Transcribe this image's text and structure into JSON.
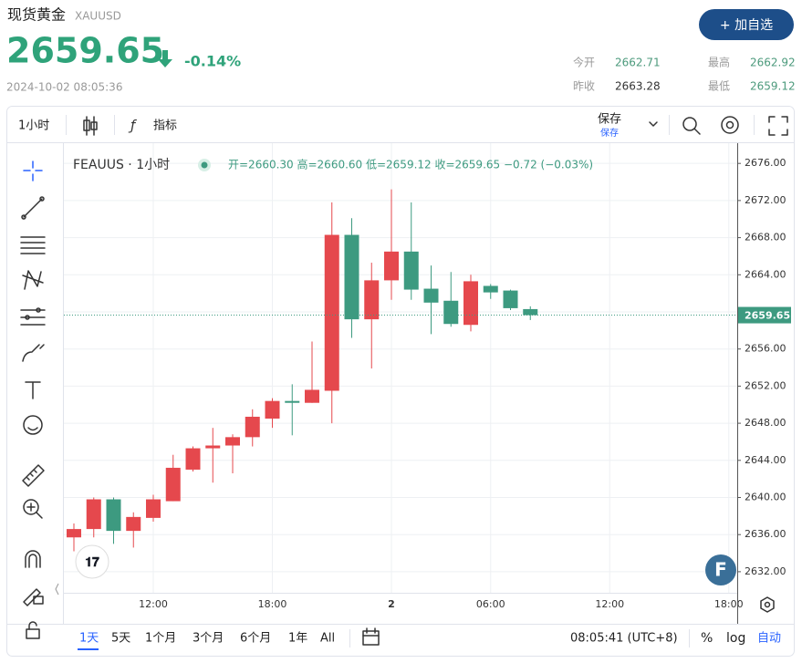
{
  "header": {
    "name": "现货黄金",
    "symbol": "XAUUSD",
    "price": "2659.65",
    "change": "-0.14%",
    "datetime": "2024-10-02 08:05:36",
    "watch_button": "+ 加自选",
    "stats": [
      {
        "label": "今开",
        "value": "2662.71"
      },
      {
        "label": "最高",
        "value": "2662.92"
      },
      {
        "label": "昨收",
        "value": "2663.28"
      },
      {
        "label": "最低",
        "value": "2659.12"
      }
    ]
  },
  "toolbar": {
    "interval": "1小时",
    "indicators": "指标",
    "save": "保存",
    "save_sub": "保存"
  },
  "chart_data": {
    "type": "candlestick",
    "symbol_label": "FEAUUS · 1小时",
    "legend_ohlc": "开=2660.30 高=2660.60 低=2659.12 收=2659.65 −0.72 (−0.03%)",
    "categories": [
      null,
      null,
      null,
      null,
      "12:00",
      null,
      null,
      null,
      null,
      null,
      "18:00",
      null,
      null,
      null,
      null,
      null,
      "2",
      null,
      null,
      null,
      null,
      "06:00",
      null,
      null,
      null,
      null,
      null,
      "12:00",
      null,
      null,
      null,
      null,
      null,
      "18:00"
    ],
    "open": [
      2635.7,
      2636.6,
      2639.8,
      2636.4,
      2637.8,
      2639.6,
      2643.0,
      2645.3,
      2645.6,
      2646.5,
      2648.5,
      2650.4,
      2650.2,
      2651.5,
      2668.3,
      2659.2,
      2663.4,
      2666.5,
      2662.5,
      2661.2,
      2658.6,
      2662.8,
      2662.3,
      2660.3,
      null,
      null,
      null,
      null,
      null,
      null,
      null,
      null,
      null,
      null
    ],
    "high": [
      2637.2,
      2640.0,
      2640.0,
      2638.4,
      2640.3,
      2644.6,
      2645.5,
      2647.5,
      2646.8,
      2649.5,
      2650.7,
      2652.2,
      2656.8,
      2671.8,
      2670.1,
      2665.3,
      2673.2,
      2671.8,
      2665.0,
      2664.3,
      2664.0,
      2663.0,
      2662.4,
      2660.6,
      null,
      null,
      null,
      null,
      null,
      null,
      null,
      null,
      null,
      null
    ],
    "low": [
      2634.2,
      2635.7,
      2635.0,
      2634.6,
      2637.4,
      2639.6,
      2642.8,
      2641.6,
      2642.6,
      2645.5,
      2647.5,
      2646.7,
      2650.2,
      2648.0,
      2657.2,
      2653.9,
      2661.3,
      2661.3,
      2657.6,
      2658.4,
      2657.9,
      2661.4,
      2660.2,
      2659.12,
      null,
      null,
      null,
      null,
      null,
      null,
      null,
      null,
      null,
      null
    ],
    "close": [
      2636.6,
      2639.8,
      2636.4,
      2637.9,
      2639.8,
      2643.2,
      2645.3,
      2645.6,
      2646.5,
      2648.7,
      2650.4,
      2650.2,
      2651.6,
      2668.3,
      2659.2,
      2663.4,
      2666.5,
      2662.4,
      2661.0,
      2658.7,
      2663.3,
      2662.1,
      2660.4,
      2659.65,
      null,
      null,
      null,
      null,
      null,
      null,
      null,
      null,
      null,
      null
    ],
    "up_color": "#e5484d",
    "down_color": "#3d9a80",
    "ylim": [
      2629.73,
      2678.18
    ],
    "yticks": [
      {
        "value": 2632,
        "label": "2632.00"
      },
      {
        "value": 2636,
        "label": "2636.00"
      },
      {
        "value": 2640,
        "label": "2640.00"
      },
      {
        "value": 2644,
        "label": "2644.00"
      },
      {
        "value": 2648,
        "label": "2648.00"
      },
      {
        "value": 2652,
        "label": "2652.00"
      },
      {
        "value": 2656,
        "label": "2656.00"
      },
      {
        "value": 2660,
        "label": "2660.00"
      },
      {
        "value": 2664,
        "label": "2664.00"
      },
      {
        "value": 2668,
        "label": "2668.00"
      },
      {
        "value": 2672,
        "label": "2672.00"
      },
      {
        "value": 2676,
        "label": "2676.00"
      }
    ],
    "last_price": 2659.65,
    "grid": true
  },
  "bottom_bar": {
    "ranges": [
      "1天",
      "5天",
      "1个月",
      "3个月",
      "6个月",
      "1年",
      "All"
    ],
    "clock": "08:05:41 (UTC+8)",
    "percent": "%",
    "log": "log",
    "auto": "自动"
  }
}
